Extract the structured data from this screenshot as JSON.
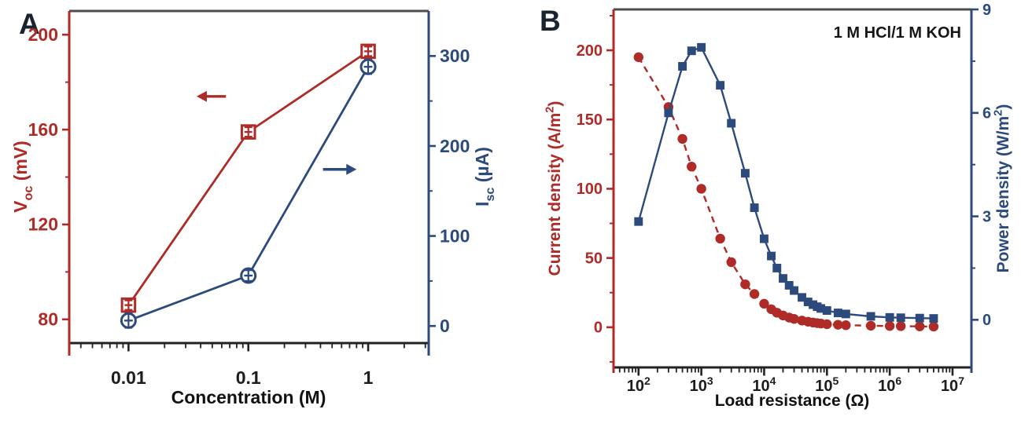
{
  "figure": {
    "background": "#ffffff",
    "panels": [
      {
        "label": "A"
      },
      {
        "label": "B"
      }
    ]
  },
  "chart_data": [
    {
      "type": "line",
      "panel": "A",
      "x_axis": {
        "label": "Concentration (M)",
        "label_parts": [
          {
            "t": "Concentration (M)"
          }
        ],
        "scale": "log",
        "min": 0.0032,
        "max": 3.2,
        "ticks": [
          0.01,
          0.1,
          1
        ],
        "tick_labels": [
          "0.01",
          "0.1",
          "1"
        ],
        "color": "#1d1d1d"
      },
      "left_axis": {
        "label_text": "Voc (mV)",
        "label_parts": [
          {
            "t": "V"
          },
          {
            "t": "oc",
            "sub": true
          },
          {
            "t": " (mV)"
          }
        ],
        "min": 70,
        "max": 210,
        "ticks": [
          80,
          120,
          160,
          200
        ],
        "minor_step": 20,
        "color": "#AF2B27"
      },
      "right_axis": {
        "label_text": "Isc (µA)",
        "label_parts": [
          {
            "t": "I"
          },
          {
            "t": "sc",
            "sub": true
          },
          {
            "t": " (µA)"
          }
        ],
        "min": -19,
        "max": 350,
        "ticks": [
          0,
          100,
          200,
          300
        ],
        "minor_step": 50,
        "color": "#2C4B7C"
      },
      "series": [
        {
          "name": "open-circuit-voltage",
          "axis": "left",
          "color": "#AF2B27",
          "marker": "square-open",
          "line": "solid",
          "x": [
            0.01,
            0.1,
            1
          ],
          "y": [
            86,
            159,
            193
          ],
          "yerr": [
            2,
            2,
            2
          ]
        },
        {
          "name": "short-circuit-current",
          "axis": "right",
          "color": "#2C4B7C",
          "marker": "circle-open",
          "line": "solid",
          "x": [
            0.01,
            0.1,
            1
          ],
          "y": [
            6,
            56,
            288
          ],
          "yerr": [
            8,
            6,
            8
          ]
        }
      ],
      "arrows": [
        {
          "axis": "left",
          "color": "#AF2B27",
          "y": 174,
          "x_tail": 0.065,
          "x_head": 0.037
        },
        {
          "axis": "right",
          "color": "#2C4B7C",
          "y": 174,
          "x_tail": 0.42,
          "x_head": 0.8
        }
      ]
    },
    {
      "type": "line",
      "panel": "B",
      "annotation": "1 M HCl/1 M KOH",
      "x_axis": {
        "label": "Load resistance (Ω)",
        "label_parts": [
          {
            "t": "Load resistance (Ω)"
          }
        ],
        "scale": "log",
        "min": 40,
        "max": 20000000,
        "ticks": [
          100,
          1000,
          10000,
          100000,
          1000000,
          10000000
        ],
        "tick_format": "power10",
        "color": "#1d1d1d"
      },
      "left_axis": {
        "label_text": "Current density (A/m²)",
        "label_parts": [
          {
            "t": "Current density  (A/m"
          },
          {
            "t": "2",
            "sup": true
          },
          {
            "t": ")"
          }
        ],
        "min": -29,
        "max": 229.5,
        "ticks": [
          0,
          50,
          100,
          150,
          200
        ],
        "minor_step": 25,
        "color": "#AF2B27"
      },
      "right_axis": {
        "label_text": "Power density (W/m²)",
        "label_parts": [
          {
            "t": "Power density  (W/m"
          },
          {
            "t": "2",
            "sup": true
          },
          {
            "t": ")"
          }
        ],
        "min": -1.38,
        "max": 9,
        "ticks": [
          0,
          3,
          6,
          9
        ],
        "minor_step": 1.5,
        "color": "#2C4B7C"
      },
      "series": [
        {
          "name": "current-density",
          "axis": "left",
          "color": "#AF2B27",
          "marker": "circle",
          "line": "dashed",
          "x": [
            100,
            300,
            500,
            700,
            1000,
            2000,
            3000,
            5000,
            7000,
            10000,
            13000,
            16000,
            20000,
            25000,
            30000,
            40000,
            50000,
            60000,
            70000,
            80000,
            100000,
            150000,
            200000,
            500000,
            1000000,
            1500000,
            3000000,
            5000000
          ],
          "y": [
            195,
            159,
            136,
            116,
            100,
            64,
            47,
            31,
            24,
            17,
            13,
            10.5,
            8.5,
            7,
            6,
            4.8,
            4,
            3.4,
            3,
            2.7,
            2.2,
            1.8,
            1.5,
            1.1,
            0.9,
            0.8,
            0.6,
            0.5
          ]
        },
        {
          "name": "power-density",
          "axis": "right",
          "color": "#2C4B7C",
          "marker": "square",
          "line": "solid",
          "x": [
            100,
            300,
            500,
            700,
            1000,
            2000,
            3000,
            5000,
            7000,
            10000,
            13000,
            16000,
            20000,
            25000,
            30000,
            40000,
            50000,
            60000,
            70000,
            80000,
            100000,
            150000,
            200000,
            500000,
            1000000,
            1500000,
            3000000,
            5000000
          ],
          "y": [
            2.85,
            6.0,
            7.35,
            7.8,
            7.9,
            6.8,
            5.7,
            4.25,
            3.25,
            2.35,
            1.85,
            1.5,
            1.2,
            1.0,
            0.85,
            0.65,
            0.52,
            0.44,
            0.38,
            0.33,
            0.27,
            0.2,
            0.17,
            0.1,
            0.07,
            0.06,
            0.05,
            0.04
          ]
        }
      ]
    }
  ]
}
